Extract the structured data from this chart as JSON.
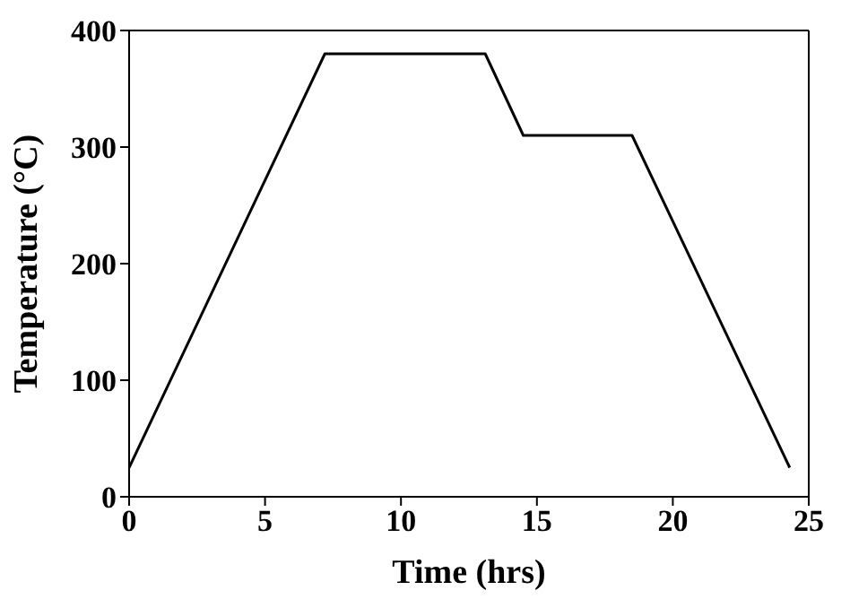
{
  "chart_data": {
    "type": "line",
    "xlabel": "Time (hrs)",
    "ylabel": "Temperature (°C)",
    "x": [
      0,
      7.2,
      13.1,
      14.5,
      18.5,
      24.3
    ],
    "series": [
      {
        "color": "#000000",
        "values": [
          25,
          380,
          380,
          310,
          310,
          25
        ]
      }
    ],
    "xlim": [
      0,
      25
    ],
    "xticks": [
      0,
      5,
      10,
      15,
      20,
      25
    ],
    "ylim": [
      0,
      400
    ],
    "yticks": [
      0,
      100,
      200,
      300,
      400
    ],
    "grid": false,
    "legend": false,
    "marker": "none",
    "line_style": "solid"
  }
}
